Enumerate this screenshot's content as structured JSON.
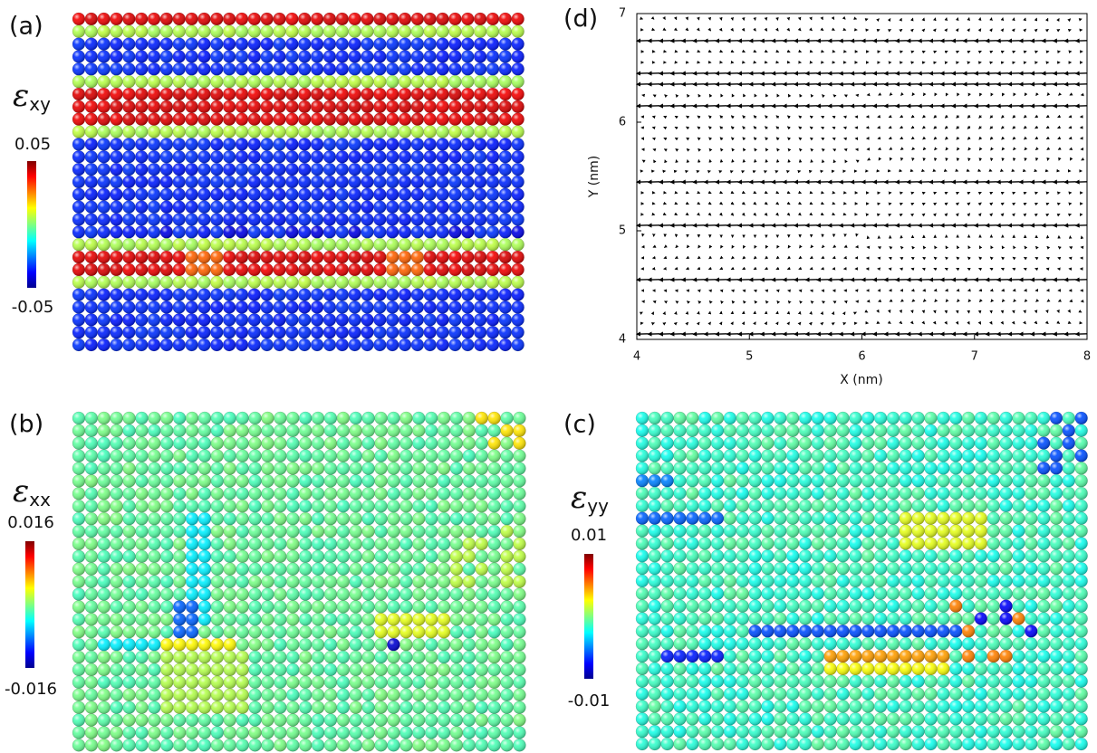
{
  "panels": [
    {
      "label": "(a)",
      "symbol": "ε",
      "subscript": "xy",
      "max": 0.05,
      "min": -0.05
    },
    {
      "label": "(b)",
      "symbol": "ε",
      "subscript": "xx",
      "max": 0.016,
      "min": -0.016
    },
    {
      "label": "(c)",
      "symbol": "ε",
      "subscript": "yy",
      "max": 0.01,
      "min": -0.01
    }
  ],
  "chart_data": {
    "type": "quiver",
    "label": "(d)",
    "xlabel": "X (nm)",
    "ylabel": "Y (nm)",
    "xlim": [
      4,
      8
    ],
    "ylim": [
      4,
      7
    ],
    "xticks": [
      4,
      5,
      6,
      7,
      8
    ],
    "yticks": [
      4,
      5,
      6,
      7
    ]
  }
}
